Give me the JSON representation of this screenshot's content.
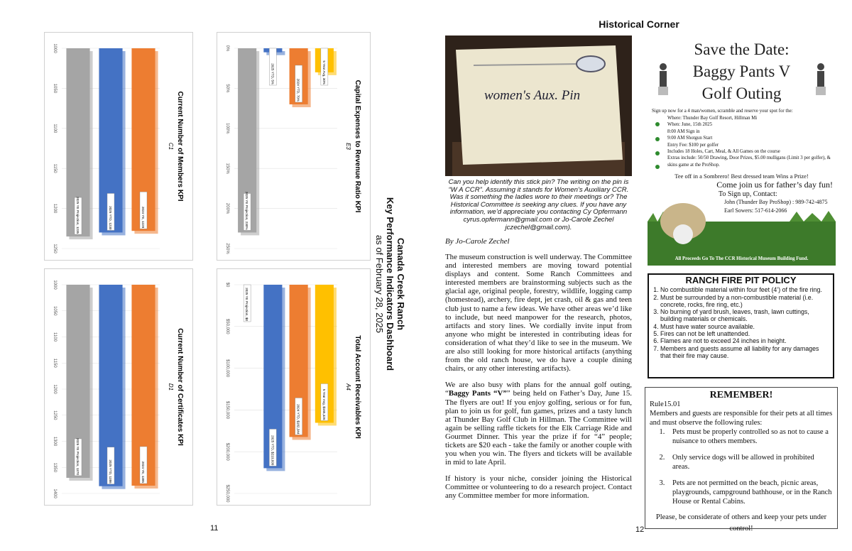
{
  "left_page": {
    "dashboard": {
      "title": "Canada Creek Ranch",
      "subtitle": "Key Performance Indicators Dashboard",
      "date": "as of February 28, 2025"
    },
    "charts": [
      {
        "title": "Current Number of Members KPI",
        "code": "C1",
        "xlim": [
          1000,
          1250
        ],
        "xticks": [
          1000,
          1050,
          1100,
          1150,
          1200,
          1250
        ],
        "bars": [
          {
            "label": "2025 YE Projection, 1235",
            "value": 1235,
            "color": "#a5a5a5"
          },
          {
            "label": "2025 YTD, 1230",
            "value": 1230,
            "color": "#4472c4"
          },
          {
            "label": "2024 YE, 1228",
            "value": 1228,
            "color": "#ed7d31"
          }
        ]
      },
      {
        "title": "Capital Expenses to Revenue Ratio KPI",
        "code": "E3",
        "xlim": [
          0,
          250
        ],
        "xticks": [
          {
            "value": 0,
            "label": "0%"
          },
          {
            "value": 50,
            "label": "50%"
          },
          {
            "value": 100,
            "label": "100%"
          },
          {
            "value": 150,
            "label": "150%"
          },
          {
            "value": 200,
            "label": "200%"
          },
          {
            "value": 250,
            "label": "250%"
          }
        ],
        "bars": [
          {
            "label": "2025 YE Projection, 230%",
            "value": 230,
            "color": "#a5a5a5"
          },
          {
            "label": "2025 YTD, 5%",
            "value": 5,
            "color": "#4472c4"
          },
          {
            "label": "2024 YTD, 70%",
            "value": 70,
            "color": "#ed7d31"
          },
          {
            "label": "5 Year Avg, 30%",
            "value": 30,
            "color": "#ffc000"
          }
        ]
      },
      {
        "title": "Current Number of Certificates KPI",
        "code": "D1",
        "xlim": [
          1000,
          1400
        ],
        "xticks": [
          1000,
          1050,
          1100,
          1150,
          1200,
          1250,
          1300,
          1350,
          1400
        ],
        "bars": [
          {
            "label": "2025 YE Projection, 1370",
            "value": 1370,
            "color": "#a5a5a5"
          },
          {
            "label": "2025 YTD, 1386",
            "value": 1386,
            "color": "#4472c4"
          },
          {
            "label": "2024 YE, 1385",
            "value": 1385,
            "color": "#ed7d31"
          }
        ]
      },
      {
        "title": "Total Account Receivables KPI",
        "code": "A4",
        "xlim": [
          0,
          250000
        ],
        "xticks": [
          {
            "value": 0,
            "label": "$0"
          },
          {
            "value": 50000,
            "label": "$50,000"
          },
          {
            "value": 100000,
            "label": "$100,000"
          },
          {
            "value": 150000,
            "label": "$150,000"
          },
          {
            "value": 200000,
            "label": "$200,000"
          },
          {
            "value": 250000,
            "label": "$250,000"
          }
        ],
        "bars": [
          {
            "label": "2025 YE Projection, $0",
            "value": 0,
            "color": "#a5a5a5"
          },
          {
            "label": "2025 YTD, $219,699",
            "value": 219699,
            "color": "#4472c4"
          },
          {
            "label": "2024 YTD, $182,344",
            "value": 182344,
            "color": "#ed7d31"
          },
          {
            "label": "5 Year Avg, $165,326",
            "value": 165326,
            "color": "#ffc000"
          }
        ]
      }
    ],
    "page_number": "11"
  },
  "right_page": {
    "header": "Historical Corner",
    "photo": {
      "note": "women's Aux. Pin"
    },
    "caption": "Can you help identify this stick pin? The writing on the pin is “W A CCR”. Assuming it stands for Women’s Auxiliary CCR. Was it something the ladies wore to their meetings or? The Historical Committee is seeking any clues. If you have any information, we’d appreciate you contacting Cy Opfermann cyrus.opfermann@gmail.com or Jo-Carole Zechel jczechel@gmail.com).",
    "byline": "By Jo-Carole Zechel",
    "paragraphs": [
      [
        "The museum construction is well underway. The Committee and interested members are moving toward potential displays and content. Some Ranch Committees and interested members are brainstorming subjects such as the glacial age, original people, forestry, wildlife, logging camp (homestead), archery, fire dept, jet crash, oil & gas and teen club just to name a few ideas. We have other areas we’d like to include, but need manpower for the research, photos, artifacts and story lines. We cordially invite input from anyone who might be interested in contributing ideas for consideration of what they’d like to see in the museum. We are also still looking for more historical artifacts (anything from the old ranch house, we do have a couple dining chairs, or any other interesting artifacts)."
      ],
      [
        "We are also busy with plans for the annual golf outing, “",
        "Baggy Pants “V”",
        "” being held on Father’s Day, June 15. The flyers are out! If you enjoy golfing, serious or for fun, plan to join us for golf, fun games, prizes and a tasty lunch at Thunder Bay Golf Club in Hillman. The Committee will again be selling raffle tickets for the Elk Carriage Ride and Gourmet Dinner. This year the prize if for “4” people; tickets are $20 each - take the family or another couple with you when you win. The flyers and tickets will be available in mid to late April."
      ],
      [
        "If history is your niche, consider joining the Historical Committee or volunteering to do a research project. Contact any Committee member for more information."
      ]
    ],
    "flyer": {
      "title_lines": [
        "Save the Date:",
        "Baggy Pants V",
        "Golf Outing"
      ],
      "intro": "Sign up now for a 4 man/women, scramble and reserve your spot for the:",
      "details": [
        "Where: Thunder Bay Golf Resort, Hillman Mi",
        "When: June, 15th 2025",
        "8:00 AM Sign in",
        "9:00 AM Shotgun Start",
        "Entry Fee: $100 per golfer",
        "Includes 18 Holes, Cart, Meal, & All Games on the course",
        "Extras include: 50/50 Drawing, Door Prizes, $5.00 mulligans (Limit 3 per golfer), & skins game at the ProShop."
      ],
      "tee_off": "Tee off in a Sombrero! Best dressed team Wins a Prize!",
      "fathers_day": "Come join us for father’s day fun!",
      "contact_heading": "To Sign up, Contact:",
      "contacts": [
        "John (Thunder Bay ProShop) : 989-742-4875",
        "Earl Sowers: 517-614-2066"
      ],
      "proceeds": "All Proceeds Go To The CCR Historical Museum Building Fund."
    },
    "fire_pit": {
      "title": "RANCH FIRE PIT POLICY",
      "rules": [
        "No combustible material within four feet (4’) of the fire ring.",
        "Must be surrounded by a non-combustible material (i.e. concrete, rocks, fire ring, etc.)",
        "No burning of yard brush, leaves, trash, lawn cuttings, building materials or chemicals.",
        "Must have water source available.",
        "Fires can not be left unattended.",
        "Flames are not to exceed 24 inches in height.",
        "Members and guests assume all liability for any damages that their fire may cause."
      ]
    },
    "remember": {
      "title": "REMEMBER!",
      "rule": "Rule15.01",
      "intro": "Members and guests are responsible for their pets at all times and must observe the following rules:",
      "items": [
        "Pets must be properly controlled so as not to cause a nuisance to others members.",
        "Only service dogs will be allowed in prohibited areas.",
        "Pets are not permitted on the beach, picnic areas, playgrounds, campground bathhouse, or in the Ranch House or Rental Cabins."
      ],
      "footer": "Please, be considerate of others and keep your pets under control!"
    },
    "page_number": "12"
  }
}
